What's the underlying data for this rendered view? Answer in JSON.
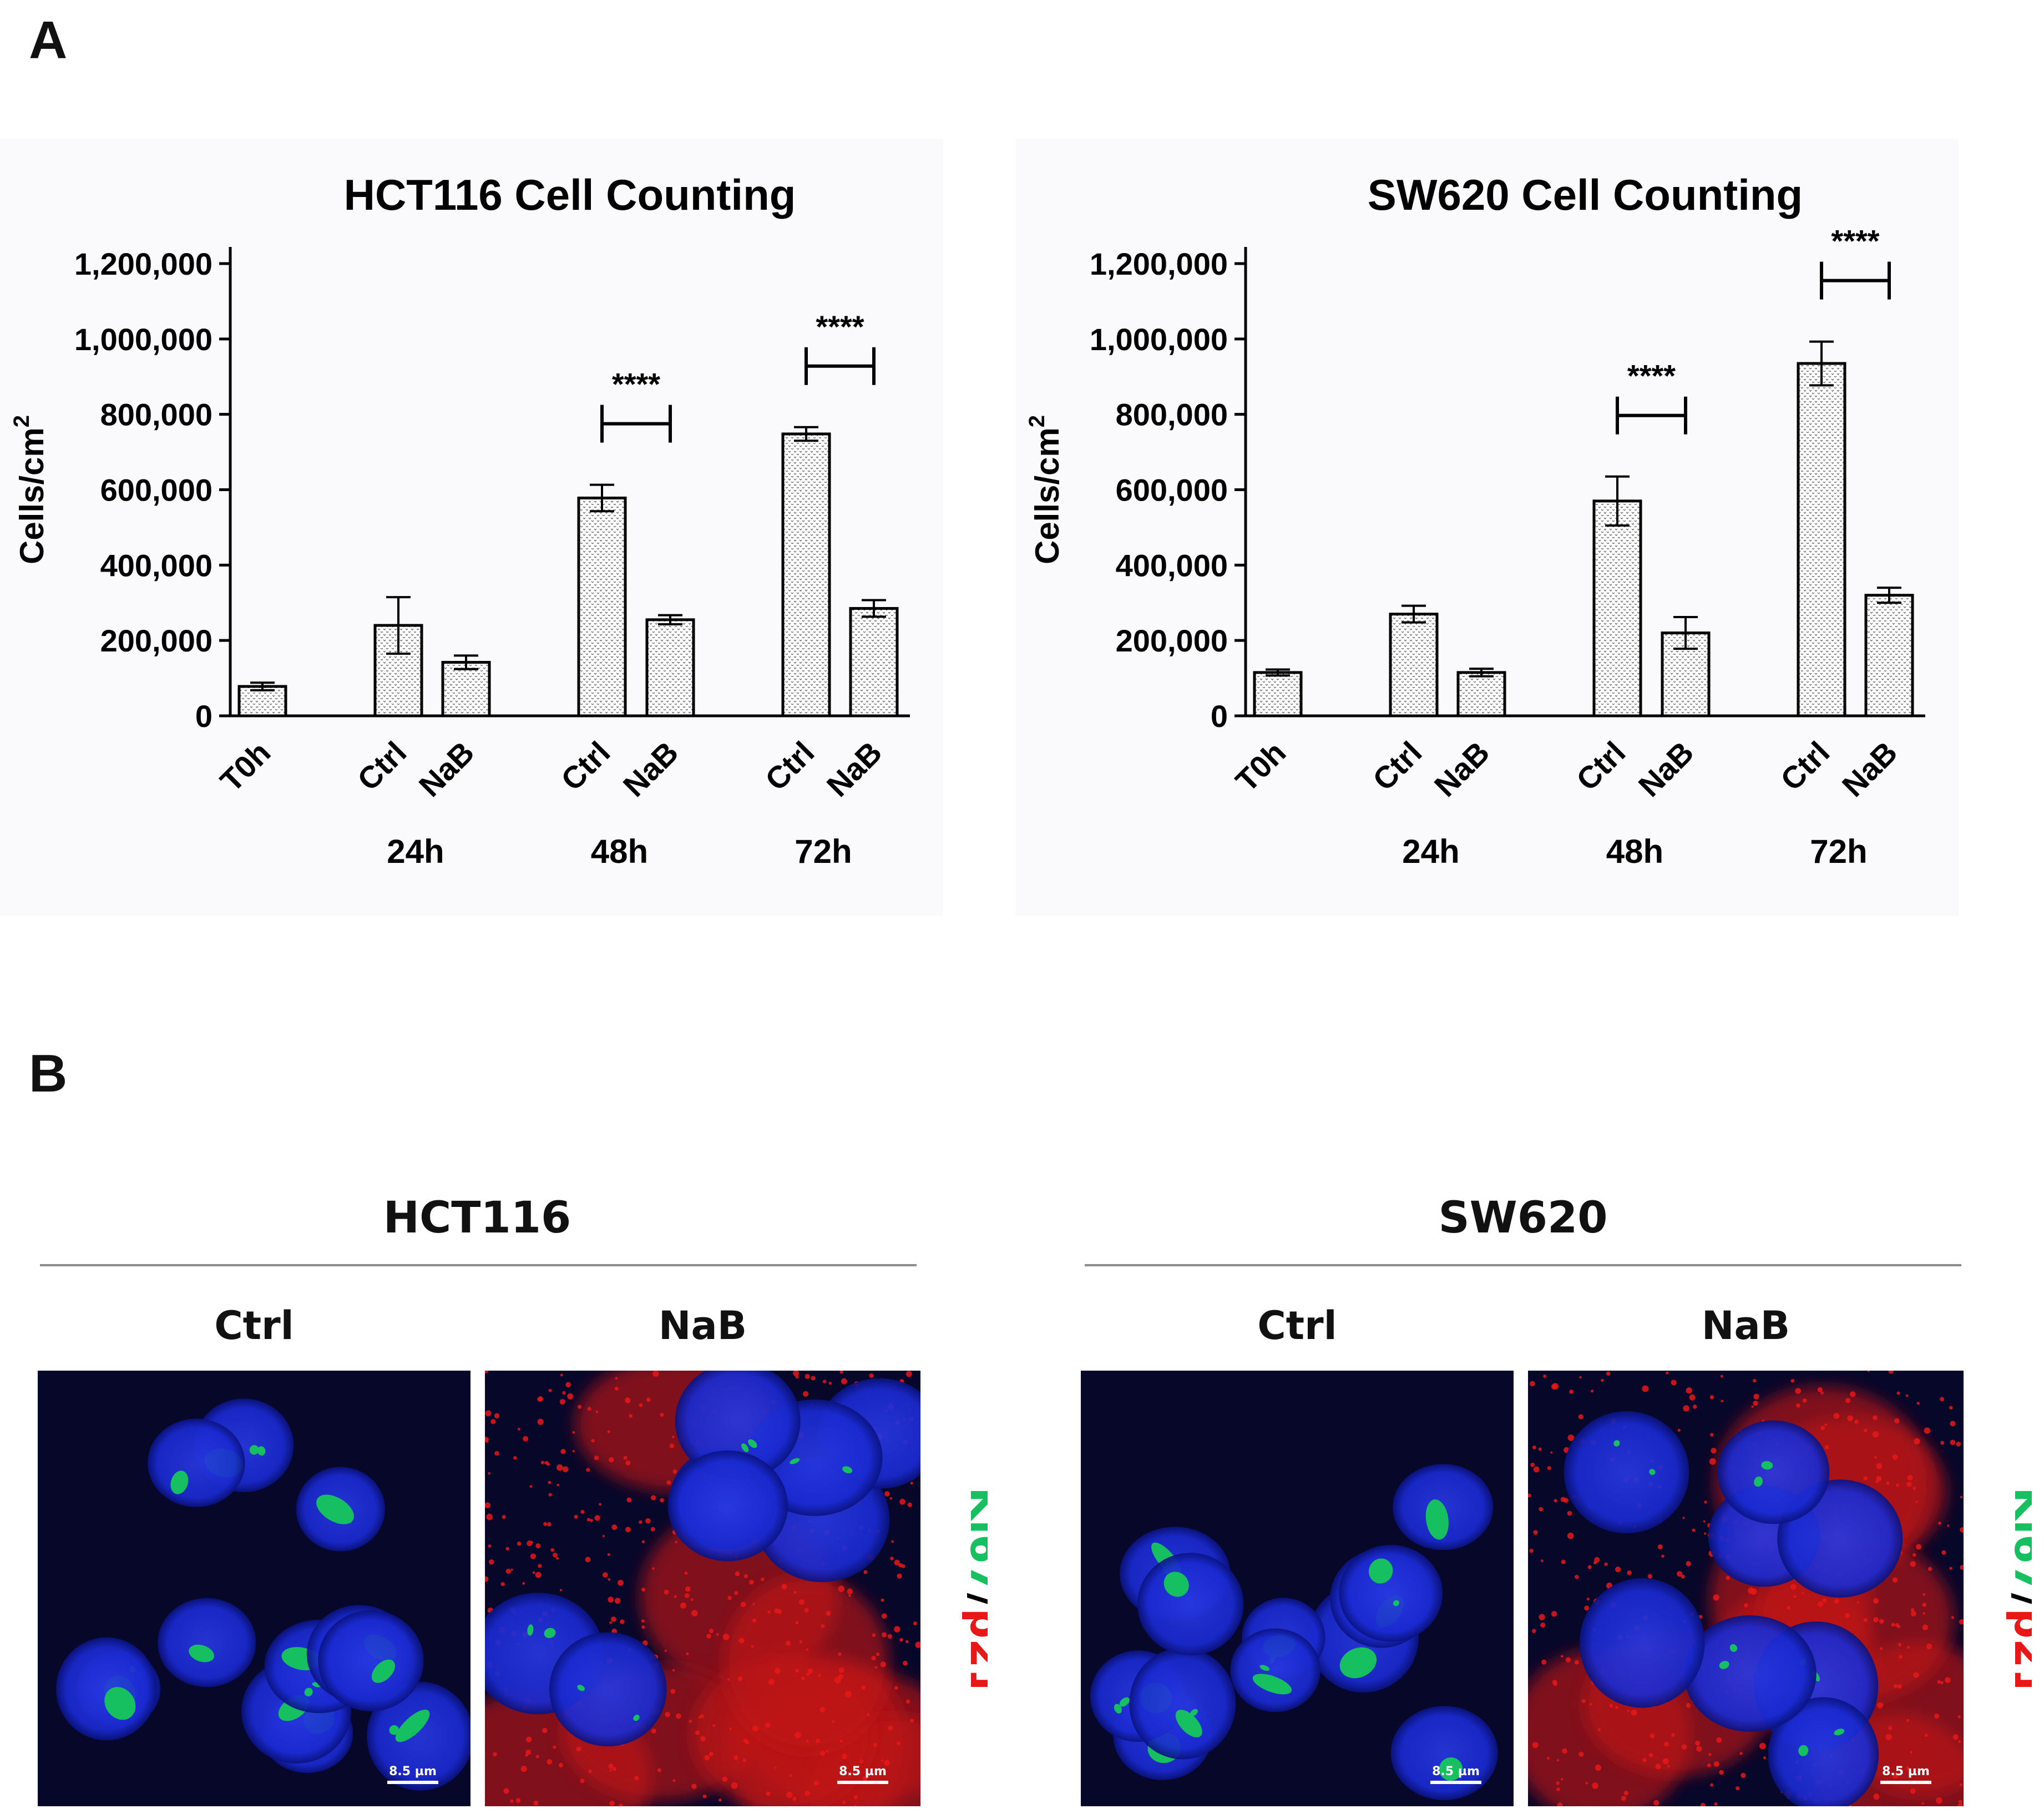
{
  "panel_a_label": "A",
  "panel_b_label": "B",
  "chart_data": [
    {
      "type": "bar",
      "title": "HCT116 Cell Counting",
      "ylabel": "Cells/cm",
      "ylabel_sup": "2",
      "ylim": [
        0,
        1200000
      ],
      "yticks": [
        0,
        200000,
        400000,
        600000,
        800000,
        1000000,
        1200000
      ],
      "ytick_labels": [
        "0",
        "200,000",
        "400,000",
        "600,000",
        "800,000",
        "1,000,000",
        "1,200,000"
      ],
      "categories": [
        "T0h",
        "Ctrl",
        "NaB",
        "Ctrl",
        "NaB",
        "Ctrl",
        "NaB"
      ],
      "groups": [
        "",
        "24h",
        "24h",
        "48h",
        "48h",
        "72h",
        "72h"
      ],
      "group_labels": [
        "24h",
        "48h",
        "72h"
      ],
      "values": [
        78000,
        240000,
        142000,
        578000,
        255000,
        748000,
        285000
      ],
      "errors": [
        10000,
        75000,
        18000,
        35000,
        12000,
        18000,
        22000
      ],
      "significance": [
        {
          "from": 3,
          "to": 4,
          "label": "****"
        },
        {
          "from": 5,
          "to": 6,
          "label": "****"
        }
      ],
      "grid": false,
      "bar_pattern": "dotted"
    },
    {
      "type": "bar",
      "title": "SW620 Cell Counting",
      "ylabel": "Cells/cm",
      "ylabel_sup": "2",
      "ylim": [
        0,
        1200000
      ],
      "yticks": [
        0,
        200000,
        400000,
        600000,
        800000,
        1000000,
        1200000
      ],
      "ytick_labels": [
        "0",
        "200,000",
        "400,000",
        "600,000",
        "800,000",
        "1,000,000",
        "1,200,000"
      ],
      "categories": [
        "T0h",
        "Ctrl",
        "NaB",
        "Ctrl",
        "NaB",
        "Ctrl",
        "NaB"
      ],
      "groups": [
        "",
        "24h",
        "24h",
        "48h",
        "48h",
        "72h",
        "72h"
      ],
      "group_labels": [
        "24h",
        "48h",
        "72h"
      ],
      "values": [
        115000,
        270000,
        115000,
        570000,
        220000,
        935000,
        320000
      ],
      "errors": [
        8000,
        22000,
        10000,
        65000,
        42000,
        58000,
        20000
      ],
      "significance": [
        {
          "from": 3,
          "to": 4,
          "label": "****"
        },
        {
          "from": 5,
          "to": 6,
          "label": "****"
        }
      ],
      "grid": false,
      "bar_pattern": "dotted"
    }
  ],
  "micrographs": {
    "groups": [
      {
        "title": "HCT116",
        "conditions": [
          "Ctrl",
          "NaB"
        ],
        "scale_labels": [
          "8.5 µm",
          "8.5 µm"
        ]
      },
      {
        "title": "SW620",
        "conditions": [
          "Ctrl",
          "NaB"
        ],
        "scale_labels": [
          "8.5 µm",
          "8.5 µm"
        ]
      }
    ],
    "stain": {
      "ki67": "Ki67",
      "separator": "/",
      "p21": "p21"
    },
    "colors": {
      "ki67": "#16c060",
      "p21": "#e81818",
      "nucleus": "#1a2ad0",
      "background": "#07072a"
    }
  }
}
